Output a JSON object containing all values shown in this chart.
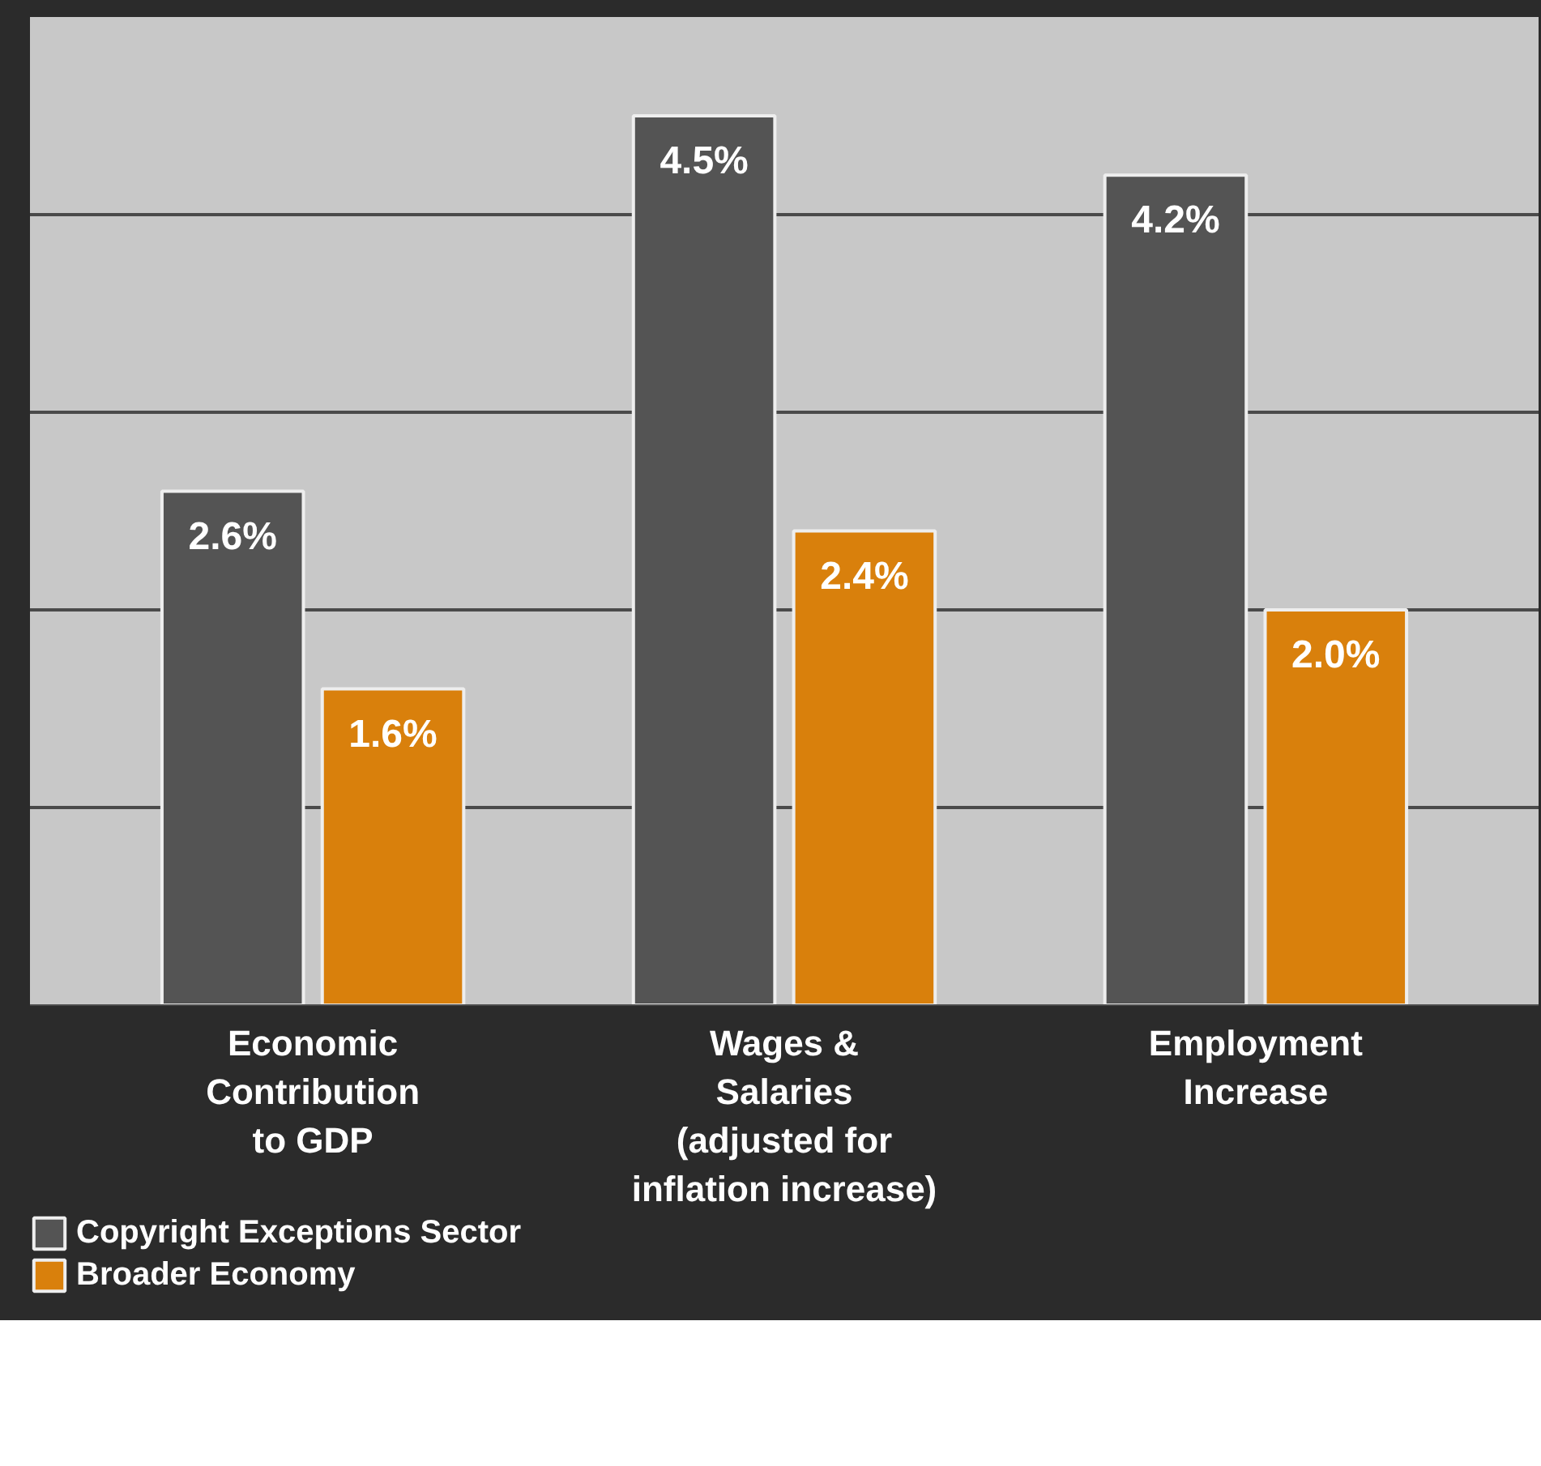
{
  "chart_data": {
    "type": "bar",
    "categories": [
      "Economic\nContribution\nto GDP",
      "Wages &\nSalaries\n(adjusted for\ninflation increase)",
      "Employment\nIncrease"
    ],
    "series": [
      {
        "name": "Copyright Exceptions Sector",
        "color": "#545454",
        "values": [
          2.6,
          4.5,
          4.2
        ],
        "value_labels": [
          "2.6%",
          "4.5%",
          "4.2%"
        ]
      },
      {
        "name": "Broader Economy",
        "color": "#d9800c",
        "values": [
          1.6,
          2.4,
          2.0
        ],
        "value_labels": [
          "1.6%",
          "2.4%",
          "2.0%"
        ]
      }
    ],
    "ylim": [
      0,
      5
    ],
    "yticks": [
      {
        "value": 1,
        "label": null
      },
      {
        "value": 2,
        "label": null
      },
      {
        "value": 3,
        "label": null
      },
      {
        "value": 4,
        "label": null
      }
    ],
    "grid": "y",
    "legend": "bottom left"
  }
}
